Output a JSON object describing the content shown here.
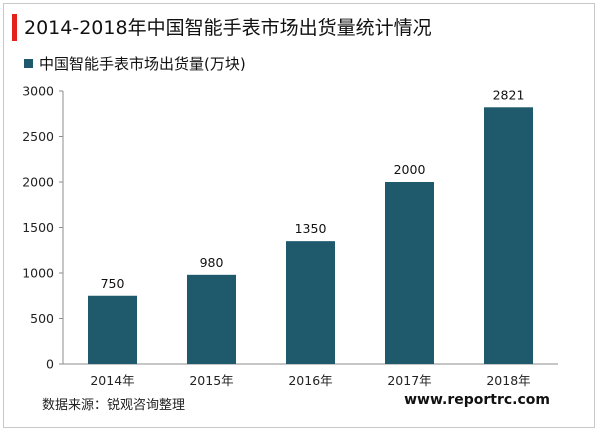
{
  "title": "2014-2018年中国智能手表市场出货量统计情况",
  "source_text": "数据来源：锐观咨询整理",
  "website": "www.reportrc.com",
  "colors": {
    "accent": "#e3231b",
    "bar": "#1e5a6b"
  },
  "chart_data": {
    "type": "bar",
    "title": "2014-2018年中国智能手表市场出货量统计情况",
    "categories": [
      "2014年",
      "2015年",
      "2016年",
      "2017年",
      "2018年"
    ],
    "series": [
      {
        "name": "中国智能手表市场出货量(万块)",
        "values": [
          750,
          980,
          1350,
          2000,
          2821
        ]
      }
    ],
    "ylim": [
      0,
      3000
    ],
    "yticks": [
      0,
      500,
      1000,
      1500,
      2000,
      2500,
      3000
    ],
    "grid": false,
    "legend_position": "top-left",
    "data_labels": true
  }
}
